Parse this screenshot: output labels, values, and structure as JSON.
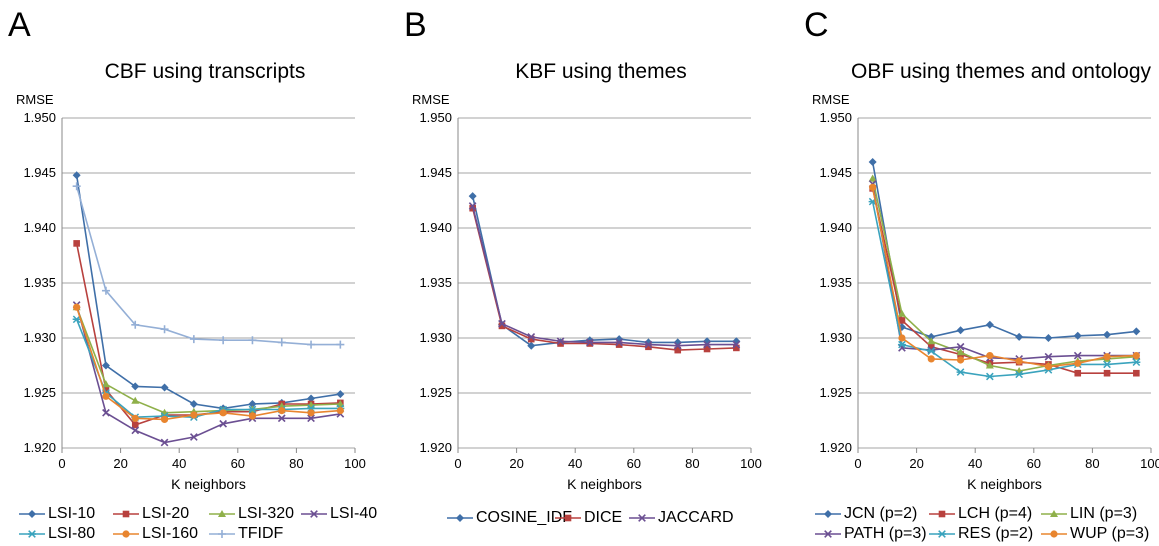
{
  "chart_data": [
    {
      "type": "line",
      "panel_letter": "A",
      "title": "CBF using transcripts",
      "ylabel": "RMSE",
      "xlabel": "K neighbors",
      "xlim": [
        0,
        100
      ],
      "ylim": [
        1.92,
        1.95
      ],
      "xticks": [
        "0",
        "20",
        "40",
        "60",
        "80",
        "100"
      ],
      "yticks": [
        "1.920",
        "1.925",
        "1.930",
        "1.935",
        "1.940",
        "1.945",
        "1.950"
      ],
      "grid": "horizontal",
      "legend_position": "bottom",
      "x": [
        5,
        15,
        25,
        35,
        45,
        55,
        65,
        75,
        85,
        95
      ],
      "series": [
        {
          "name": "LSI-10",
          "color": "#3f6fa8",
          "marker": "diamond",
          "values": [
            1.9448,
            1.9275,
            1.9256,
            1.9255,
            1.924,
            1.9236,
            1.924,
            1.9241,
            1.9245,
            1.9249
          ]
        },
        {
          "name": "LSI-20",
          "color": "#b8413e",
          "marker": "square",
          "values": [
            1.9386,
            1.9253,
            1.9221,
            1.923,
            1.923,
            1.9233,
            1.9233,
            1.924,
            1.924,
            1.9241
          ]
        },
        {
          "name": "LSI-320",
          "color": "#8fb04a",
          "marker": "triangle",
          "values": [
            1.9328,
            1.9258,
            1.9243,
            1.9232,
            1.9233,
            1.9234,
            1.9235,
            1.9238,
            1.9239,
            1.924
          ]
        },
        {
          "name": "LSI-40",
          "color": "#6b4f92",
          "marker": "x",
          "values": [
            1.933,
            1.9232,
            1.9216,
            1.9205,
            1.921,
            1.9222,
            1.9227,
            1.9227,
            1.9227,
            1.9231
          ]
        },
        {
          "name": "LSI-80",
          "color": "#3aa3bd",
          "marker": "star",
          "values": [
            1.9317,
            1.925,
            1.9228,
            1.9229,
            1.9228,
            1.9235,
            1.9235,
            1.9235,
            1.9236,
            1.9236
          ]
        },
        {
          "name": "LSI-160",
          "color": "#e8852f",
          "marker": "circle",
          "values": [
            1.9328,
            1.9247,
            1.9227,
            1.9226,
            1.923,
            1.9232,
            1.9229,
            1.9234,
            1.9232,
            1.9234
          ]
        },
        {
          "name": "TFIDF",
          "color": "#94afd6",
          "marker": "plus",
          "values": [
            1.9438,
            1.9343,
            1.9312,
            1.9308,
            1.9299,
            1.9298,
            1.9298,
            1.9296,
            1.9294,
            1.9294
          ]
        }
      ]
    },
    {
      "type": "line",
      "panel_letter": "B",
      "title": "KBF using themes",
      "ylabel": "RMSE",
      "xlabel": "K neighbors",
      "xlim": [
        0,
        100
      ],
      "ylim": [
        1.92,
        1.95
      ],
      "xticks": [
        "0",
        "20",
        "40",
        "60",
        "80",
        "100"
      ],
      "yticks": [
        "1.920",
        "1.925",
        "1.930",
        "1.935",
        "1.940",
        "1.945",
        "1.950"
      ],
      "grid": "horizontal",
      "legend_position": "bottom",
      "x": [
        5,
        15,
        25,
        35,
        45,
        55,
        65,
        75,
        85,
        95
      ],
      "series": [
        {
          "name": "COSINE_IDF",
          "color": "#3f6fa8",
          "marker": "diamond",
          "values": [
            1.9429,
            1.9312,
            1.9293,
            1.9296,
            1.9298,
            1.9299,
            1.9296,
            1.9296,
            1.9297,
            1.9297
          ]
        },
        {
          "name": "DICE",
          "color": "#b8413e",
          "marker": "square",
          "values": [
            1.9418,
            1.9311,
            1.9299,
            1.9295,
            1.9295,
            1.9294,
            1.9292,
            1.9289,
            1.929,
            1.9291
          ]
        },
        {
          "name": "JACCARD",
          "color": "#6b4f92",
          "marker": "x",
          "values": [
            1.942,
            1.9313,
            1.9301,
            1.9297,
            1.9296,
            1.9296,
            1.9294,
            1.9293,
            1.9294,
            1.9294
          ]
        }
      ]
    },
    {
      "type": "line",
      "panel_letter": "C",
      "title": "OBF using themes and ontology",
      "ylabel": "RMSE",
      "xlabel": "K neighbors",
      "xlim": [
        0,
        100
      ],
      "ylim": [
        1.92,
        1.95
      ],
      "xticks": [
        "0",
        "20",
        "40",
        "60",
        "80",
        "100"
      ],
      "yticks": [
        "1.920",
        "1.925",
        "1.930",
        "1.935",
        "1.940",
        "1.945",
        "1.950"
      ],
      "grid": "horizontal",
      "legend_position": "bottom",
      "x": [
        5,
        15,
        25,
        35,
        45,
        55,
        65,
        75,
        85,
        95
      ],
      "series": [
        {
          "name": "JCN (p=2)",
          "color": "#3f6fa8",
          "marker": "diamond",
          "values": [
            1.946,
            1.931,
            1.9301,
            1.9307,
            1.9312,
            1.9301,
            1.93,
            1.9302,
            1.9303,
            1.9306
          ]
        },
        {
          "name": "LCH (p=4)",
          "color": "#b8413e",
          "marker": "square",
          "values": [
            1.9436,
            1.9316,
            1.9292,
            1.9285,
            1.9277,
            1.9278,
            1.9276,
            1.9268,
            1.9268,
            1.9268
          ]
        },
        {
          "name": "LIN (p=3)",
          "color": "#8fb04a",
          "marker": "triangle",
          "values": [
            1.9445,
            1.9322,
            1.9297,
            1.9287,
            1.9275,
            1.927,
            1.9275,
            1.9279,
            1.9281,
            1.9283
          ]
        },
        {
          "name": "PATH (p=3)",
          "color": "#6b4f92",
          "marker": "x",
          "values": [
            1.944,
            1.9291,
            1.9289,
            1.9292,
            1.9282,
            1.9281,
            1.9283,
            1.9284,
            1.9284,
            1.9284
          ]
        },
        {
          "name": "RES (p=2)",
          "color": "#3aa3bd",
          "marker": "star",
          "values": [
            1.9424,
            1.9294,
            1.9288,
            1.9269,
            1.9265,
            1.9267,
            1.9271,
            1.9276,
            1.9276,
            1.9278
          ]
        },
        {
          "name": "WUP (p=3)",
          "color": "#e8852f",
          "marker": "circle",
          "values": [
            1.9437,
            1.93,
            1.9281,
            1.928,
            1.9284,
            1.9279,
            1.9274,
            1.9277,
            1.9283,
            1.9284
          ]
        }
      ]
    }
  ]
}
